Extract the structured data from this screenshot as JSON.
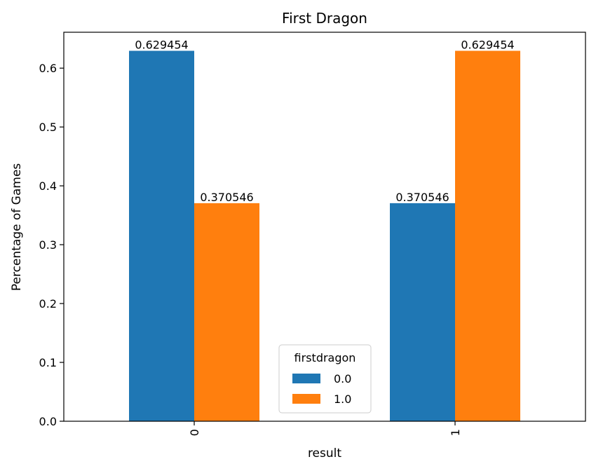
{
  "chart_data": {
    "type": "bar",
    "title": "First Dragon",
    "xlabel": "result",
    "ylabel": "Percentage of Games",
    "categories": [
      "0",
      "1"
    ],
    "series": [
      {
        "name": "0.0",
        "color": "#1f77b4",
        "values": [
          0.629454,
          0.370546
        ],
        "labels": [
          "0.629454",
          "0.370546"
        ]
      },
      {
        "name": "1.0",
        "color": "#ff7f0e",
        "values": [
          0.370546,
          0.629454
        ],
        "labels": [
          "0.370546",
          "0.629454"
        ]
      }
    ],
    "ylim": [
      0,
      0.661
    ],
    "yticks": [
      0,
      0.1,
      0.2,
      0.3,
      0.4,
      0.5,
      0.6
    ],
    "ytick_labels": [
      "0.0",
      "0.1",
      "0.2",
      "0.3",
      "0.4",
      "0.5",
      "0.6"
    ],
    "legend": {
      "title": "firstdragon",
      "position": "lower-center"
    },
    "grid": false
  }
}
